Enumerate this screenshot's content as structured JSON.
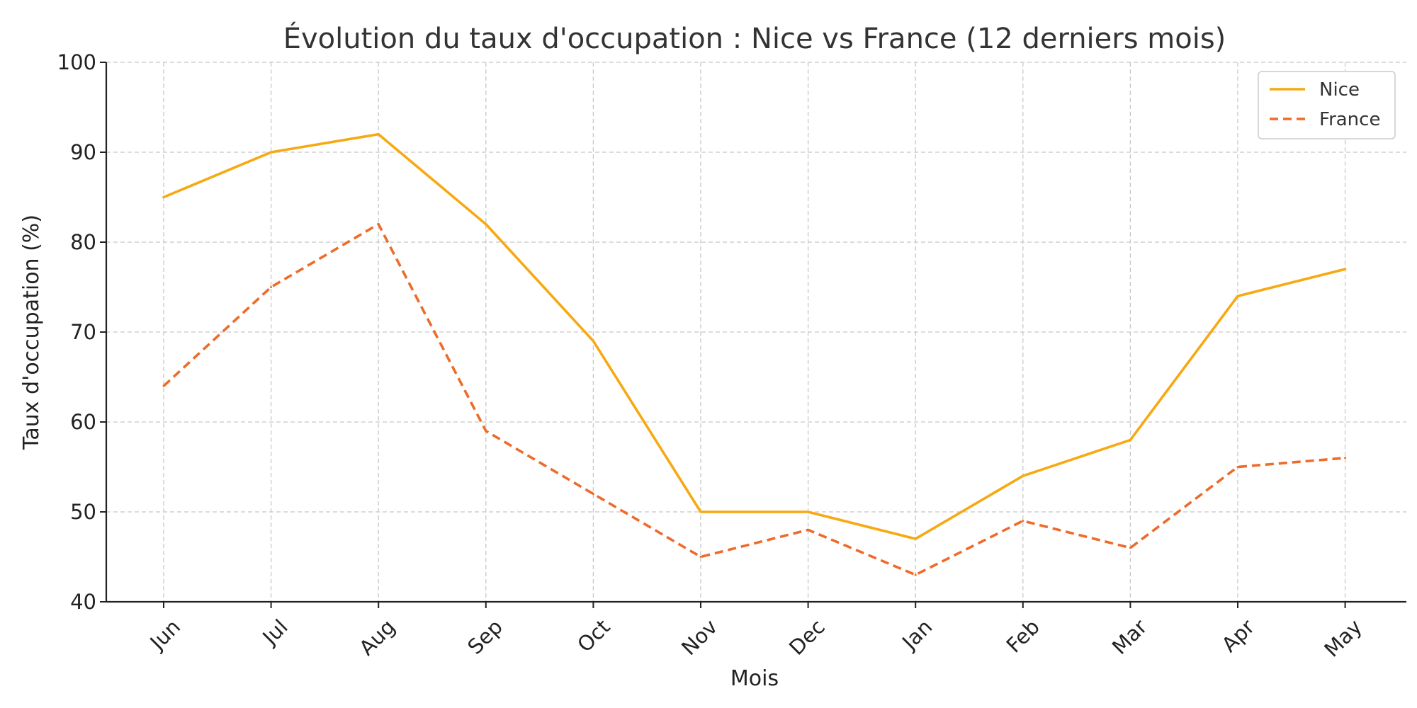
{
  "chart_data": {
    "type": "line",
    "title": "Évolution du taux d'occupation : Nice vs France (12 derniers mois)",
    "xlabel": "Mois",
    "ylabel": "Taux d'occupation (%)",
    "categories": [
      "Jun",
      "Jul",
      "Aug",
      "Sep",
      "Oct",
      "Nov",
      "Dec",
      "Jan",
      "Feb",
      "Mar",
      "Apr",
      "May"
    ],
    "ylim": [
      40,
      100
    ],
    "yticks": [
      "40",
      "50",
      "60",
      "70",
      "80",
      "90",
      "100"
    ],
    "grid": true,
    "legend_position": "top-right",
    "series": [
      {
        "name": "Nice",
        "values": [
          85,
          90,
          92,
          82,
          69,
          50,
          50,
          47,
          54,
          58,
          74,
          77
        ],
        "color": "#f6a912",
        "style": "solid"
      },
      {
        "name": "France",
        "values": [
          64,
          75,
          82,
          59,
          52,
          45,
          48,
          43,
          49,
          46,
          55,
          56
        ],
        "color": "#ee6b2a",
        "style": "dashed"
      }
    ]
  }
}
